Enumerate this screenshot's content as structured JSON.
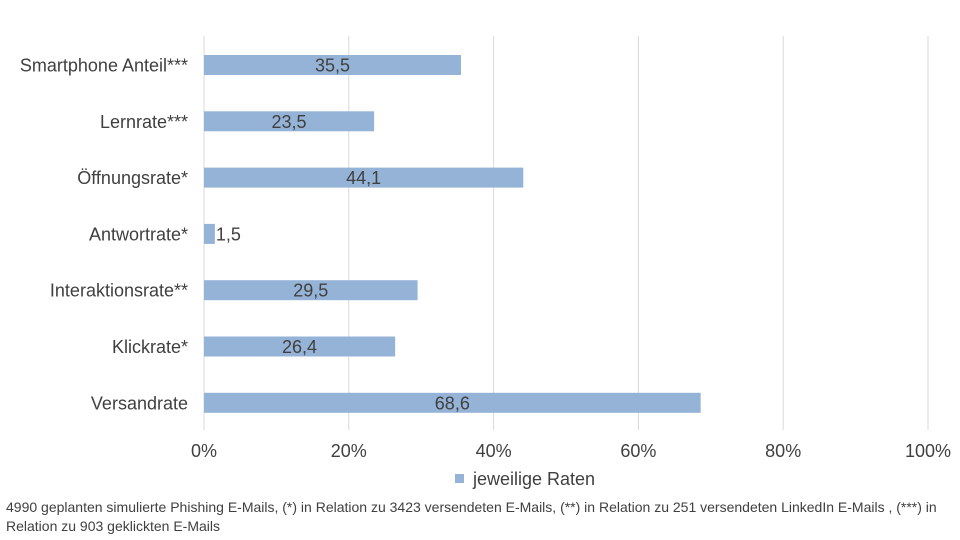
{
  "chart_data": {
    "type": "bar",
    "orientation": "horizontal",
    "categories": [
      "Smartphone Anteil***",
      "Lernrate***",
      "Öffnungsrate*",
      "Antwortrate*",
      "Interaktionsrate**",
      "Klickrate*",
      "Versandrate"
    ],
    "series": [
      {
        "name": "jeweilige Raten",
        "values": [
          35.5,
          23.5,
          44.1,
          1.5,
          29.5,
          26.4,
          68.6
        ],
        "labels": [
          "35,5",
          "23,5",
          "44,1",
          "1,5",
          "29,5",
          "26,4",
          "68,6"
        ],
        "color": "#95b3d7"
      }
    ],
    "xlim": [
      0,
      100
    ],
    "x_ticks": [
      0,
      20,
      40,
      60,
      80,
      100
    ],
    "x_tick_labels": [
      "0%",
      "20%",
      "40%",
      "60%",
      "80%",
      "100%"
    ],
    "grid": true,
    "legend_position": "bottom",
    "gridline_color": "#d9d9d9",
    "text_color": "#404040"
  },
  "footnote": "4990 geplanten simulierte Phishing E-Mails, (*) in Relation zu 3423 versendeten E-Mails, (**) in Relation zu 251 versendeten LinkedIn E-Mails , (***) in Relation zu 903 geklickten E-Mails"
}
